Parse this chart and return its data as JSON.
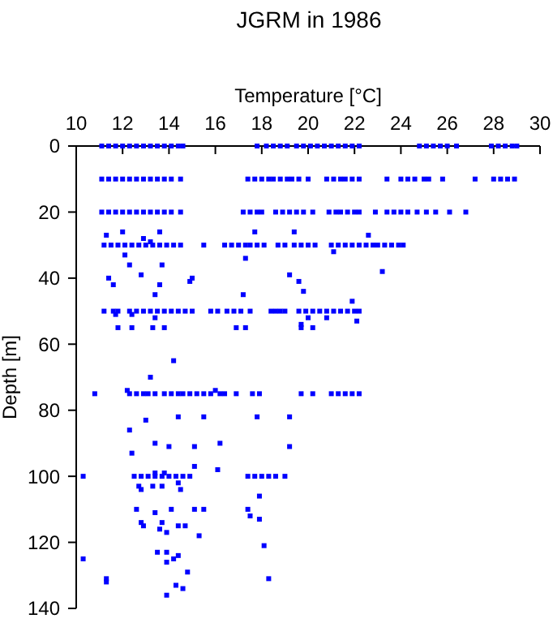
{
  "chart_data": {
    "type": "scatter",
    "title": "JGRM in 1986",
    "xlabel": "Temperature [°C]",
    "ylabel": "Depth [m]",
    "xlim": [
      10,
      30
    ],
    "xticks": [
      10,
      12,
      14,
      16,
      18,
      20,
      22,
      24,
      26,
      28,
      30
    ],
    "ylim": [
      140,
      0
    ],
    "yticks": [
      0,
      20,
      40,
      60,
      80,
      100,
      120,
      140
    ],
    "marker": "square",
    "series": [
      {
        "color": "#0000ff",
        "x": [
          11.1,
          11.4,
          11.7,
          12.0,
          12.3,
          12.6,
          12.9,
          13.2,
          13.5,
          13.8,
          14.1,
          14.4,
          14.6,
          17.8,
          18.2,
          18.5,
          18.8,
          19.1,
          19.5,
          19.8,
          20.1,
          20.4,
          20.7,
          21.0,
          21.3,
          21.6,
          21.9,
          22.2,
          24.8,
          25.1,
          25.4,
          25.7,
          26.0,
          26.4,
          27.9,
          28.2,
          28.5,
          28.8,
          29.0
        ],
        "values": [
          0,
          0,
          0,
          0,
          0,
          0,
          0,
          0,
          0,
          0,
          0,
          0,
          0,
          0,
          0,
          0,
          0,
          0,
          0,
          0,
          0,
          0,
          0,
          0,
          0,
          0,
          0,
          0,
          0,
          0,
          0,
          0,
          0,
          0,
          0,
          0,
          0,
          0,
          0
        ]
      },
      {
        "color": "#0000ff",
        "x": [
          11.1,
          11.4,
          11.7,
          12.0,
          12.3,
          12.6,
          12.9,
          13.2,
          13.5,
          13.8,
          14.1,
          14.5,
          17.4,
          17.7,
          18.0,
          18.3,
          18.5,
          18.8,
          19.1,
          19.3,
          19.6,
          20.0,
          20.8,
          21.1,
          21.4,
          21.6,
          21.9,
          22.2,
          23.4,
          24.0,
          24.3,
          24.6,
          25.0,
          25.2,
          25.8,
          27.2,
          28.0,
          28.3,
          28.6,
          28.9
        ],
        "values": [
          10,
          10,
          10,
          10,
          10,
          10,
          10,
          10,
          10,
          10,
          10,
          10,
          10,
          10,
          10,
          10,
          10,
          10,
          10,
          10,
          10,
          10,
          10,
          10,
          10,
          10,
          10,
          10,
          10,
          10,
          10,
          10,
          10,
          10,
          10,
          10,
          10,
          10,
          10,
          10
        ]
      },
      {
        "color": "#0000ff",
        "x": [
          11.1,
          11.4,
          11.7,
          12.0,
          12.3,
          12.6,
          12.9,
          13.2,
          13.5,
          13.8,
          14.1,
          14.5,
          17.2,
          17.5,
          17.8,
          18.0,
          18.6,
          18.9,
          19.2,
          19.5,
          19.8,
          20.2,
          20.9,
          21.2,
          21.4,
          21.7,
          22.0,
          22.2,
          22.9,
          23.4,
          23.7,
          24.0,
          24.3,
          24.7,
          25.1,
          25.5,
          26.1,
          26.8
        ],
        "values": [
          20,
          20,
          20,
          20,
          20,
          20,
          20,
          20,
          20,
          20,
          20,
          20,
          20,
          20,
          20,
          20,
          20,
          20,
          20,
          20,
          20,
          20,
          20,
          20,
          20,
          20,
          20,
          20,
          20,
          20,
          20,
          20,
          20,
          20,
          20,
          20,
          20,
          20
        ]
      },
      {
        "color": "#0000ff",
        "x": [
          11.2,
          11.5,
          11.8,
          12.1,
          12.4,
          12.7,
          13.0,
          13.3,
          13.6,
          13.9,
          14.2,
          14.5,
          15.5,
          16.4,
          16.7,
          17.0,
          17.3,
          17.5,
          17.8,
          18.1,
          18.7,
          19.0,
          19.4,
          19.7,
          20.0,
          20.3,
          21.0,
          21.3,
          21.6,
          21.9,
          22.2,
          22.5,
          22.8,
          23.0,
          23.3,
          23.6,
          23.9,
          24.1
        ],
        "values": [
          30,
          30,
          30,
          30,
          30,
          30,
          30,
          30,
          30,
          30,
          30,
          30,
          30,
          30,
          30,
          30,
          30,
          30,
          30,
          30,
          30,
          30,
          30,
          30,
          30,
          30,
          30,
          30,
          30,
          30,
          30,
          30,
          30,
          30,
          30,
          30,
          30,
          30
        ]
      },
      {
        "color": "#0000ff",
        "x": [
          11.3,
          12.0,
          12.9,
          13.2,
          13.6,
          17.7,
          19.4,
          22.6,
          21.1,
          12.1,
          12.3,
          13.7,
          17.3,
          23.2,
          11.4,
          11.6,
          12.8,
          13.6,
          13.4,
          14.9,
          15.0,
          17.2,
          19.2,
          19.6,
          19.8,
          21.9
        ],
        "values": [
          27,
          26,
          28,
          29,
          26,
          26,
          26,
          27,
          32,
          33,
          36,
          36,
          34,
          38,
          40,
          42,
          39,
          42,
          45,
          41,
          40,
          45,
          39,
          41,
          44,
          47
        ]
      },
      {
        "color": "#0000ff",
        "x": [
          11.2,
          11.6,
          11.8,
          12.3,
          12.6,
          12.9,
          13.2,
          13.5,
          13.8,
          14.1,
          14.4,
          14.7,
          15.0,
          15.8,
          16.1,
          16.5,
          16.8,
          17.1,
          17.5,
          18.4,
          18.6,
          18.8,
          19.0,
          19.6,
          19.9,
          20.2,
          20.5,
          20.8,
          21.1,
          21.4,
          21.7,
          22.0,
          22.2
        ],
        "values": [
          50,
          50,
          50,
          50,
          50,
          50,
          50,
          50,
          50,
          50,
          50,
          50,
          50,
          50,
          50,
          50,
          50,
          50,
          50,
          50,
          50,
          50,
          50,
          50,
          50,
          50,
          50,
          50,
          50,
          50,
          50,
          50,
          50
        ]
      },
      {
        "color": "#0000ff",
        "x": [
          11.7,
          12.4,
          13.4,
          20.0,
          20.8,
          22.1,
          19.7,
          11.8,
          12.4,
          13.3,
          13.8,
          16.9,
          17.3,
          19.7,
          20.2,
          14.2,
          13.2,
          12.2,
          16.0
        ],
        "values": [
          51,
          51,
          52,
          52,
          52,
          53,
          54,
          55,
          55,
          55,
          55,
          55,
          55,
          55,
          55,
          65,
          70,
          74,
          74
        ]
      },
      {
        "color": "#0000ff",
        "x": [
          10.8,
          12.3,
          12.6,
          12.9,
          13.1,
          13.4,
          13.8,
          14.1,
          14.4,
          14.6,
          14.9,
          15.2,
          15.5,
          15.8,
          16.2,
          16.4,
          16.9,
          17.6,
          17.9,
          19.7,
          20.2,
          21.0,
          21.3,
          21.6,
          21.9,
          22.2
        ],
        "values": [
          75,
          75,
          75,
          75,
          75,
          75,
          75,
          75,
          75,
          75,
          75,
          75,
          75,
          75,
          75,
          75,
          75,
          75,
          75,
          75,
          75,
          75,
          75,
          75,
          75,
          75
        ]
      },
      {
        "color": "#0000ff",
        "x": [
          14.4,
          15.5,
          17.8,
          19.2,
          13.0,
          12.3,
          13.4,
          16.2,
          14.0,
          15.1,
          19.2,
          12.4,
          15.1,
          16.1,
          13.4,
          13.8
        ],
        "values": [
          82,
          82,
          82,
          82,
          83,
          86,
          90,
          90,
          91,
          91,
          91,
          93,
          97,
          98,
          99,
          99
        ]
      },
      {
        "color": "#0000ff",
        "x": [
          10.3,
          12.5,
          12.8,
          13.1,
          13.4,
          13.7,
          14.0,
          14.3,
          14.6,
          14.9,
          17.4,
          17.7,
          18.0,
          18.3,
          18.6,
          19.0
        ],
        "values": [
          100,
          100,
          100,
          100,
          100,
          100,
          100,
          100,
          100,
          100,
          100,
          100,
          100,
          100,
          100,
          100
        ]
      },
      {
        "color": "#0000ff",
        "x": [
          14.4,
          12.7,
          13.3,
          13.7,
          12.8,
          14.5,
          17.9,
          12.6,
          14.1,
          15.1,
          15.5,
          17.4,
          13.4,
          17.5,
          17.9,
          12.8,
          13.7,
          12.9,
          14.4,
          14.7,
          13.6,
          13.9,
          15.3,
          18.1,
          13.5,
          13.9,
          14.4,
          10.3,
          14.2,
          13.9,
          14.8,
          11.3,
          18.3,
          11.3,
          14.3,
          14.6,
          13.9
        ],
        "values": [
          102,
          103,
          103,
          103,
          104,
          104,
          106,
          110,
          110,
          110,
          110,
          110,
          111,
          112,
          113,
          114,
          114,
          115,
          115,
          115,
          116,
          117,
          118,
          121,
          123,
          123,
          124,
          125,
          125,
          126,
          129,
          131,
          131,
          132,
          133,
          134,
          136
        ]
      }
    ]
  }
}
